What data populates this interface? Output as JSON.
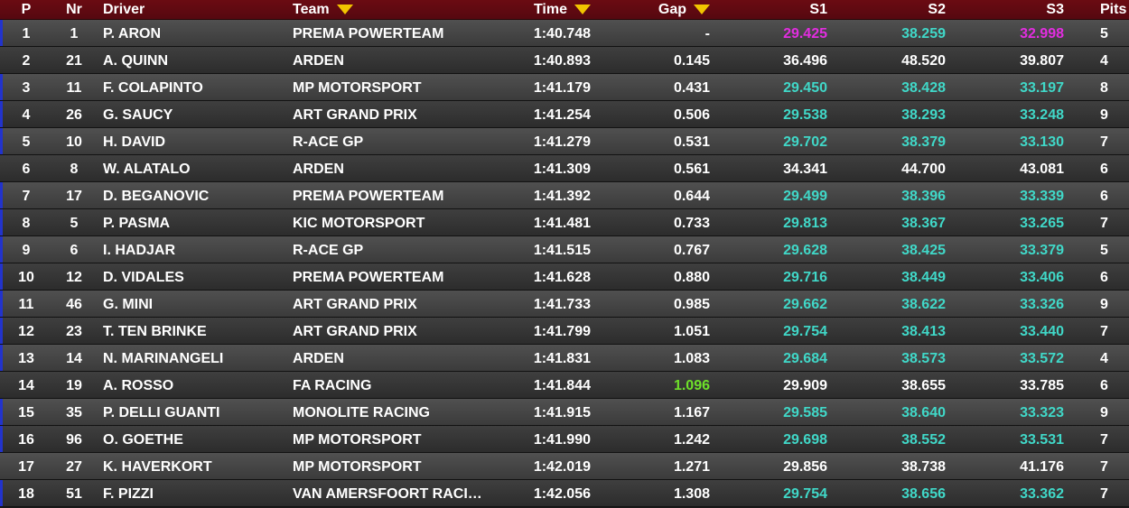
{
  "header": {
    "p": "P",
    "nr": "Nr",
    "driver": "Driver",
    "team": "Team",
    "time": "Time",
    "gap": "Gap",
    "s1": "S1",
    "s2": "S2",
    "s3": "S3",
    "pits": "Pits"
  },
  "colors": {
    "cyan": "#40d8c8",
    "magenta": "#e22de0",
    "green": "#6ee02a",
    "white": "#ffffff",
    "sort_arrow": "#f2c500",
    "header_bg": "#6b0b12",
    "row_marker": "#2233cc"
  },
  "icons": {
    "sort": "triangle-down-icon"
  },
  "rows": [
    {
      "p": "1",
      "nr": "1",
      "driver": "P. ARON",
      "team": "PREMA POWERTEAM",
      "time": "1:40.748",
      "gap": "-",
      "s1": "29.425",
      "s2": "38.259",
      "s3": "32.998",
      "pits": "5",
      "s1c": "magenta",
      "s2c": "cyan",
      "s3c": "magenta",
      "gapc": "white",
      "marker": true
    },
    {
      "p": "2",
      "nr": "21",
      "driver": "A. QUINN",
      "team": "ARDEN",
      "time": "1:40.893",
      "gap": "0.145",
      "s1": "36.496",
      "s2": "48.520",
      "s3": "39.807",
      "pits": "4",
      "s1c": "white",
      "s2c": "white",
      "s3c": "white",
      "gapc": "white",
      "marker": false
    },
    {
      "p": "3",
      "nr": "11",
      "driver": "F. COLAPINTO",
      "team": "MP MOTORSPORT",
      "time": "1:41.179",
      "gap": "0.431",
      "s1": "29.450",
      "s2": "38.428",
      "s3": "33.197",
      "pits": "8",
      "s1c": "cyan",
      "s2c": "cyan",
      "s3c": "cyan",
      "gapc": "white",
      "marker": true
    },
    {
      "p": "4",
      "nr": "26",
      "driver": "G. SAUCY",
      "team": "ART GRAND PRIX",
      "time": "1:41.254",
      "gap": "0.506",
      "s1": "29.538",
      "s2": "38.293",
      "s3": "33.248",
      "pits": "9",
      "s1c": "cyan",
      "s2c": "cyan",
      "s3c": "cyan",
      "gapc": "white",
      "marker": true
    },
    {
      "p": "5",
      "nr": "10",
      "driver": "H. DAVID",
      "team": "R-ACE GP",
      "time": "1:41.279",
      "gap": "0.531",
      "s1": "29.702",
      "s2": "38.379",
      "s3": "33.130",
      "pits": "7",
      "s1c": "cyan",
      "s2c": "cyan",
      "s3c": "cyan",
      "gapc": "white",
      "marker": true
    },
    {
      "p": "6",
      "nr": "8",
      "driver": "W. ALATALO",
      "team": "ARDEN",
      "time": "1:41.309",
      "gap": "0.561",
      "s1": "34.341",
      "s2": "44.700",
      "s3": "43.081",
      "pits": "6",
      "s1c": "white",
      "s2c": "white",
      "s3c": "white",
      "gapc": "white",
      "marker": false
    },
    {
      "p": "7",
      "nr": "17",
      "driver": "D. BEGANOVIC",
      "team": "PREMA POWERTEAM",
      "time": "1:41.392",
      "gap": "0.644",
      "s1": "29.499",
      "s2": "38.396",
      "s3": "33.339",
      "pits": "6",
      "s1c": "cyan",
      "s2c": "cyan",
      "s3c": "cyan",
      "gapc": "white",
      "marker": true
    },
    {
      "p": "8",
      "nr": "5",
      "driver": "P. PASMA",
      "team": "KIC MOTORSPORT",
      "time": "1:41.481",
      "gap": "0.733",
      "s1": "29.813",
      "s2": "38.367",
      "s3": "33.265",
      "pits": "7",
      "s1c": "cyan",
      "s2c": "cyan",
      "s3c": "cyan",
      "gapc": "white",
      "marker": true
    },
    {
      "p": "9",
      "nr": "6",
      "driver": "I. HADJAR",
      "team": "R-ACE GP",
      "time": "1:41.515",
      "gap": "0.767",
      "s1": "29.628",
      "s2": "38.425",
      "s3": "33.379",
      "pits": "5",
      "s1c": "cyan",
      "s2c": "cyan",
      "s3c": "cyan",
      "gapc": "white",
      "marker": true
    },
    {
      "p": "10",
      "nr": "12",
      "driver": "D. VIDALES",
      "team": "PREMA POWERTEAM",
      "time": "1:41.628",
      "gap": "0.880",
      "s1": "29.716",
      "s2": "38.449",
      "s3": "33.406",
      "pits": "6",
      "s1c": "cyan",
      "s2c": "cyan",
      "s3c": "cyan",
      "gapc": "white",
      "marker": true
    },
    {
      "p": "11",
      "nr": "46",
      "driver": "G. MINI",
      "team": "ART GRAND PRIX",
      "time": "1:41.733",
      "gap": "0.985",
      "s1": "29.662",
      "s2": "38.622",
      "s3": "33.326",
      "pits": "9",
      "s1c": "cyan",
      "s2c": "cyan",
      "s3c": "cyan",
      "gapc": "white",
      "marker": true
    },
    {
      "p": "12",
      "nr": "23",
      "driver": "T. TEN BRINKE",
      "team": "ART GRAND PRIX",
      "time": "1:41.799",
      "gap": "1.051",
      "s1": "29.754",
      "s2": "38.413",
      "s3": "33.440",
      "pits": "7",
      "s1c": "cyan",
      "s2c": "cyan",
      "s3c": "cyan",
      "gapc": "white",
      "marker": true
    },
    {
      "p": "13",
      "nr": "14",
      "driver": "N. MARINANGELI",
      "team": "ARDEN",
      "time": "1:41.831",
      "gap": "1.083",
      "s1": "29.684",
      "s2": "38.573",
      "s3": "33.572",
      "pits": "4",
      "s1c": "cyan",
      "s2c": "cyan",
      "s3c": "cyan",
      "gapc": "white",
      "marker": true
    },
    {
      "p": "14",
      "nr": "19",
      "driver": "A. ROSSO",
      "team": "FA RACING",
      "time": "1:41.844",
      "gap": "1.096",
      "s1": "29.909",
      "s2": "38.655",
      "s3": "33.785",
      "pits": "6",
      "s1c": "white",
      "s2c": "white",
      "s3c": "white",
      "gapc": "green",
      "marker": false
    },
    {
      "p": "15",
      "nr": "35",
      "driver": "P. DELLI GUANTI",
      "team": "MONOLITE RACING",
      "time": "1:41.915",
      "gap": "1.167",
      "s1": "29.585",
      "s2": "38.640",
      "s3": "33.323",
      "pits": "9",
      "s1c": "cyan",
      "s2c": "cyan",
      "s3c": "cyan",
      "gapc": "white",
      "marker": true
    },
    {
      "p": "16",
      "nr": "96",
      "driver": "O. GOETHE",
      "team": "MP MOTORSPORT",
      "time": "1:41.990",
      "gap": "1.242",
      "s1": "29.698",
      "s2": "38.552",
      "s3": "33.531",
      "pits": "7",
      "s1c": "cyan",
      "s2c": "cyan",
      "s3c": "cyan",
      "gapc": "white",
      "marker": true
    },
    {
      "p": "17",
      "nr": "27",
      "driver": "K. HAVERKORT",
      "team": "MP MOTORSPORT",
      "time": "1:42.019",
      "gap": "1.271",
      "s1": "29.856",
      "s2": "38.738",
      "s3": "41.176",
      "pits": "7",
      "s1c": "white",
      "s2c": "white",
      "s3c": "white",
      "gapc": "white",
      "marker": false
    },
    {
      "p": "18",
      "nr": "51",
      "driver": "F. PIZZI",
      "team": "VAN AMERSFOORT RACI…",
      "time": "1:42.056",
      "gap": "1.308",
      "s1": "29.754",
      "s2": "38.656",
      "s3": "33.362",
      "pits": "7",
      "s1c": "cyan",
      "s2c": "cyan",
      "s3c": "cyan",
      "gapc": "white",
      "marker": true
    }
  ]
}
